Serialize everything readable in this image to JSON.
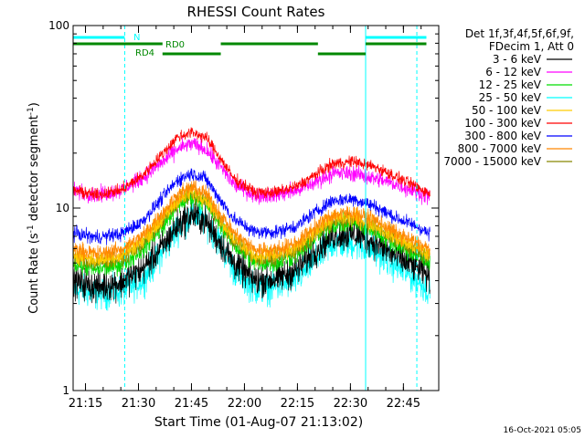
{
  "chart_data": {
    "type": "line",
    "title": "RHESSI Count Rates",
    "xlabel": "Start Time (01-Aug-07 21:13:02)",
    "ylabel_main": "Count Rate (s",
    "ylabel_sup1": "-1",
    "ylabel_mid": " detector segment",
    "ylabel_sup2": "-1",
    "ylabel_end": ")",
    "yscale": "log",
    "ylim": [
      1,
      100
    ],
    "y_ticks": [
      {
        "value": 1,
        "label": "1"
      },
      {
        "value": 10,
        "label": "10"
      },
      {
        "value": 100,
        "label": "100"
      }
    ],
    "xlim_min": [
      -1.5,
      102
    ],
    "x_ticks": [
      {
        "min": 2,
        "label": "21:15"
      },
      {
        "min": 17,
        "label": "21:30"
      },
      {
        "min": 32,
        "label": "21:45"
      },
      {
        "min": 47,
        "label": "22:00"
      },
      {
        "min": 62,
        "label": "22:15"
      },
      {
        "min": 77,
        "label": "22:30"
      },
      {
        "min": 92,
        "label": "22:45"
      }
    ],
    "timestamp": "16-Oct-2021 05:05",
    "legend_header": [
      "Det 1f,3f,4f,5f,6f,9f,",
      "FDecim 1, Att 0"
    ],
    "series": [
      {
        "name": "3 - 6 keV",
        "color": "#000000",
        "points": [
          [
            -1.5,
            4.0
          ],
          [
            5,
            3.7
          ],
          [
            12,
            3.9
          ],
          [
            18,
            4.6
          ],
          [
            24,
            6.2
          ],
          [
            28,
            8.0
          ],
          [
            32,
            9.2
          ],
          [
            36,
            8.5
          ],
          [
            40,
            6.5
          ],
          [
            44,
            5.0
          ],
          [
            50,
            4.0
          ],
          [
            56,
            4.1
          ],
          [
            62,
            4.6
          ],
          [
            66,
            5.6
          ],
          [
            72,
            7.1
          ],
          [
            78,
            7.2
          ],
          [
            84,
            6.5
          ],
          [
            90,
            5.4
          ],
          [
            96,
            4.7
          ],
          [
            99.5,
            4.2
          ]
        ]
      },
      {
        "name": "6 - 12 keV",
        "color": "#ff00ff",
        "points": [
          [
            -1.5,
            12.5
          ],
          [
            5,
            11.8
          ],
          [
            12,
            12.5
          ],
          [
            18,
            14.5
          ],
          [
            24,
            18.0
          ],
          [
            28,
            21.0
          ],
          [
            32,
            22.5
          ],
          [
            36,
            21.0
          ],
          [
            40,
            17.0
          ],
          [
            44,
            13.5
          ],
          [
            50,
            11.8
          ],
          [
            56,
            11.8
          ],
          [
            62,
            12.5
          ],
          [
            66,
            13.5
          ],
          [
            72,
            15.5
          ],
          [
            78,
            15.5
          ],
          [
            84,
            14.5
          ],
          [
            90,
            13.5
          ],
          [
            96,
            12.2
          ],
          [
            99.5,
            11.5
          ]
        ]
      },
      {
        "name": "12 - 25 keV",
        "color": "#00dd00",
        "points": [
          [
            -1.5,
            5.0
          ],
          [
            5,
            4.6
          ],
          [
            12,
            4.9
          ],
          [
            18,
            5.9
          ],
          [
            24,
            8.0
          ],
          [
            28,
            10.3
          ],
          [
            32,
            11.6
          ],
          [
            36,
            10.8
          ],
          [
            40,
            8.3
          ],
          [
            44,
            6.3
          ],
          [
            50,
            5.0
          ],
          [
            56,
            5.0
          ],
          [
            62,
            5.6
          ],
          [
            66,
            6.6
          ],
          [
            72,
            8.2
          ],
          [
            78,
            8.3
          ],
          [
            84,
            7.5
          ],
          [
            90,
            6.3
          ],
          [
            96,
            5.5
          ],
          [
            99.5,
            5.0
          ]
        ]
      },
      {
        "name": "25 - 50 keV",
        "color": "#00ffff",
        "points": [
          [
            -1.5,
            3.6
          ],
          [
            5,
            3.4
          ],
          [
            12,
            3.5
          ],
          [
            18,
            4.0
          ],
          [
            24,
            5.8
          ],
          [
            28,
            7.7
          ],
          [
            32,
            9.2
          ],
          [
            36,
            8.5
          ],
          [
            40,
            6.5
          ],
          [
            44,
            4.6
          ],
          [
            50,
            3.6
          ],
          [
            56,
            3.7
          ],
          [
            62,
            4.1
          ],
          [
            66,
            5.0
          ],
          [
            72,
            6.4
          ],
          [
            78,
            6.4
          ],
          [
            84,
            5.8
          ],
          [
            90,
            4.8
          ],
          [
            96,
            4.0
          ],
          [
            99.5,
            3.5
          ]
        ]
      },
      {
        "name": "50 - 100 keV",
        "color": "#ffcc00",
        "points": [
          [
            -1.5,
            5.6
          ],
          [
            5,
            5.2
          ],
          [
            12,
            5.5
          ],
          [
            18,
            6.6
          ],
          [
            24,
            8.8
          ],
          [
            28,
            11.0
          ],
          [
            32,
            12.2
          ],
          [
            36,
            11.4
          ],
          [
            40,
            8.8
          ],
          [
            44,
            6.8
          ],
          [
            50,
            5.5
          ],
          [
            56,
            5.5
          ],
          [
            62,
            6.1
          ],
          [
            66,
            7.2
          ],
          [
            72,
            8.8
          ],
          [
            78,
            8.9
          ],
          [
            84,
            8.1
          ],
          [
            90,
            6.8
          ],
          [
            96,
            6.0
          ],
          [
            99.5,
            5.5
          ]
        ]
      },
      {
        "name": "100 - 300 keV",
        "color": "#ff0000",
        "points": [
          [
            -1.5,
            12.5
          ],
          [
            5,
            11.8
          ],
          [
            12,
            12.5
          ],
          [
            18,
            15.0
          ],
          [
            24,
            20.0
          ],
          [
            28,
            24.5
          ],
          [
            32,
            26.0
          ],
          [
            36,
            24.5
          ],
          [
            40,
            19.0
          ],
          [
            44,
            14.5
          ],
          [
            50,
            12.2
          ],
          [
            56,
            12.2
          ],
          [
            62,
            13.2
          ],
          [
            66,
            14.8
          ],
          [
            72,
            17.5
          ],
          [
            78,
            18.0
          ],
          [
            84,
            16.8
          ],
          [
            90,
            14.8
          ],
          [
            96,
            13.0
          ],
          [
            99.5,
            12.0
          ]
        ]
      },
      {
        "name": "300 - 800 keV",
        "color": "#0000ff",
        "points": [
          [
            -1.5,
            7.3
          ],
          [
            5,
            6.9
          ],
          [
            12,
            7.2
          ],
          [
            18,
            8.4
          ],
          [
            24,
            11.5
          ],
          [
            28,
            14.2
          ],
          [
            32,
            15.5
          ],
          [
            36,
            14.5
          ],
          [
            40,
            11.2
          ],
          [
            44,
            8.7
          ],
          [
            50,
            7.4
          ],
          [
            56,
            7.4
          ],
          [
            62,
            8.0
          ],
          [
            66,
            9.2
          ],
          [
            72,
            11.0
          ],
          [
            78,
            11.2
          ],
          [
            84,
            10.2
          ],
          [
            90,
            8.8
          ],
          [
            96,
            7.9
          ],
          [
            99.5,
            7.2
          ]
        ]
      },
      {
        "name": "800 - 7000 keV",
        "color": "#ff8800",
        "points": [
          [
            -1.5,
            6.0
          ],
          [
            5,
            5.6
          ],
          [
            12,
            5.9
          ],
          [
            18,
            7.0
          ],
          [
            24,
            9.5
          ],
          [
            28,
            11.8
          ],
          [
            32,
            13.0
          ],
          [
            36,
            12.1
          ],
          [
            40,
            9.4
          ],
          [
            44,
            7.3
          ],
          [
            50,
            5.9
          ],
          [
            56,
            5.9
          ],
          [
            62,
            6.5
          ],
          [
            66,
            7.6
          ],
          [
            72,
            9.2
          ],
          [
            78,
            9.4
          ],
          [
            84,
            8.6
          ],
          [
            90,
            7.3
          ],
          [
            96,
            6.4
          ],
          [
            99.5,
            5.9
          ]
        ]
      },
      {
        "name": "7000 - 15000 keV",
        "color": "#888800",
        "points": [
          [
            -1.5,
            5.4
          ],
          [
            5,
            5.0
          ],
          [
            12,
            5.3
          ],
          [
            18,
            6.3
          ],
          [
            24,
            8.6
          ],
          [
            28,
            10.8
          ],
          [
            32,
            12.0
          ],
          [
            36,
            11.1
          ],
          [
            40,
            8.6
          ],
          [
            44,
            6.6
          ],
          [
            50,
            5.3
          ],
          [
            56,
            5.3
          ],
          [
            62,
            5.9
          ],
          [
            66,
            6.9
          ],
          [
            72,
            8.5
          ],
          [
            78,
            8.6
          ],
          [
            84,
            7.9
          ],
          [
            90,
            6.7
          ],
          [
            96,
            5.8
          ],
          [
            99.5,
            5.3
          ]
        ]
      }
    ],
    "noise_amplitude": [
      0.3,
      0.15,
      0.18,
      0.3,
      0.16,
      0.11,
      0.13,
      0.15,
      0.16
    ],
    "vertical_lines": [
      {
        "min": -1.5,
        "style": "solid",
        "color": "#00ffff"
      },
      {
        "min": 13.1,
        "style": "dashed",
        "color": "#00ffff"
      },
      {
        "min": 81.3,
        "style": "solid",
        "color": "#00ffff"
      },
      {
        "min": 95.8,
        "style": "dashed",
        "color": "#00ffff"
      }
    ],
    "state_bars": [
      {
        "label": "N",
        "color": "#00ffff",
        "level": 1,
        "segments": [
          [
            -1.5,
            13.1
          ],
          [
            81.3,
            98.5
          ]
        ]
      },
      {
        "label": "RD0",
        "color": "#008800",
        "level": 2,
        "segments": [
          [
            -1.5,
            23.8
          ],
          [
            40.3,
            67.8
          ],
          [
            81.3,
            98.5
          ]
        ]
      },
      {
        "label": "RD4",
        "color": "#008800",
        "level": 3,
        "segments": [
          [
            23.8,
            40.3
          ],
          [
            67.8,
            81.3
          ]
        ]
      }
    ]
  }
}
